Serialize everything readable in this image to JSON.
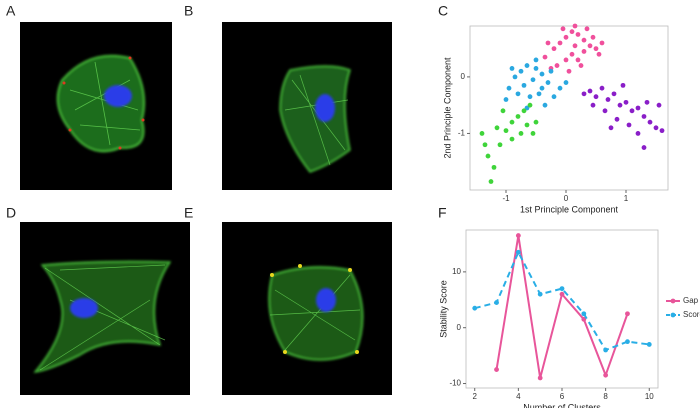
{
  "panels": [
    "A",
    "B",
    "C",
    "D",
    "E",
    "F"
  ],
  "chart_data": [
    {
      "type": "scatter",
      "x_label": "1st Principle Component",
      "y_label": "2nd Principle Component",
      "xlim": [
        -1.6,
        1.7
      ],
      "ylim": [
        -2.0,
        0.9
      ],
      "xticks": [
        -1,
        0,
        1
      ],
      "yticks": [
        -1,
        0
      ],
      "grid": false,
      "series": [
        {
          "color": "#f0509c",
          "x": [
            -0.35,
            -0.2,
            -0.1,
            0,
            0.1,
            0.2,
            0.3,
            0.4,
            0.5,
            0.55,
            0.1,
            0,
            -0.15,
            0.2,
            0.3,
            -0.05,
            0.15,
            0.35,
            0.45,
            -0.25,
            0.05,
            0.25,
            -0.3,
            0.6,
            0.15
          ],
          "values": [
            0.35,
            0.5,
            0.6,
            0.7,
            0.8,
            0.75,
            0.65,
            0.55,
            0.5,
            0.4,
            0.4,
            0.3,
            0.2,
            0.3,
            0.45,
            0.85,
            0.9,
            0.85,
            0.7,
            0.15,
            0.1,
            0.2,
            0.6,
            0.6,
            0.55
          ]
        },
        {
          "color": "#2aa8e0",
          "x": [
            -0.95,
            -0.85,
            -0.75,
            -0.65,
            -0.5,
            -0.4,
            -0.3,
            -0.55,
            -0.7,
            -0.8,
            -0.6,
            -0.45,
            -0.35,
            -0.2,
            -0.1,
            -0.9,
            -0.5,
            -0.25,
            -1.0,
            -0.65,
            0,
            -0.4
          ],
          "values": [
            -0.2,
            0,
            0.1,
            0.2,
            0.15,
            0.05,
            -0.1,
            -0.05,
            -0.15,
            -0.3,
            -0.35,
            -0.3,
            -0.5,
            -0.35,
            -0.2,
            0.15,
            0.3,
            0.1,
            -0.4,
            -0.55,
            -0.1,
            -0.2
          ]
        },
        {
          "color": "#8a1ec8",
          "x": [
            0.3,
            0.4,
            0.5,
            0.6,
            0.7,
            0.8,
            0.9,
            1.0,
            1.1,
            1.2,
            1.3,
            1.4,
            1.5,
            1.55,
            0.65,
            0.85,
            1.05,
            1.2,
            1.3,
            0.45,
            0.95,
            1.35,
            0.75,
            1.6
          ],
          "values": [
            -0.3,
            -0.25,
            -0.35,
            -0.2,
            -0.4,
            -0.3,
            -0.5,
            -0.45,
            -0.6,
            -0.55,
            -0.7,
            -0.8,
            -0.9,
            -0.5,
            -0.6,
            -0.75,
            -0.85,
            -1.0,
            -1.25,
            -0.5,
            -0.15,
            -0.45,
            -0.9,
            -0.95
          ]
        },
        {
          "color": "#3fd43a",
          "x": [
            -1.4,
            -1.3,
            -1.2,
            -1.25,
            -1.1,
            -1.0,
            -0.9,
            -0.8,
            -0.7,
            -0.6,
            -0.5,
            -0.9,
            -1.05,
            -0.75,
            -1.35,
            -0.55,
            -0.65,
            -1.15
          ],
          "values": [
            -1.0,
            -1.4,
            -1.6,
            -1.85,
            -1.2,
            -0.95,
            -0.8,
            -0.7,
            -0.6,
            -0.5,
            -0.8,
            -1.1,
            -0.6,
            -1.0,
            -1.2,
            -1.0,
            -0.85,
            -0.9
          ]
        }
      ]
    },
    {
      "type": "line",
      "x_label": "Number of Clusters",
      "y_label": "Stability Score",
      "xlim": [
        1.6,
        10.4
      ],
      "ylim": [
        -10.8,
        17.5
      ],
      "xticks": [
        2,
        4,
        6,
        8,
        10
      ],
      "yticks": [
        -10,
        0,
        10
      ],
      "grid": false,
      "legend": "right",
      "x": [
        2,
        3,
        4,
        5,
        6,
        7,
        8,
        9,
        10
      ],
      "series": [
        {
          "name": "Gap",
          "color": "#e8559a",
          "dashed": false,
          "values": [
            null,
            -7.5,
            16.5,
            -9,
            6,
            1.5,
            -8.5,
            2.5,
            null
          ]
        },
        {
          "name": "Score",
          "color": "#29aee6",
          "dashed": true,
          "values": [
            3.5,
            4.5,
            13.5,
            6,
            7,
            2.5,
            -4,
            -2.5,
            -3
          ]
        }
      ]
    }
  ]
}
